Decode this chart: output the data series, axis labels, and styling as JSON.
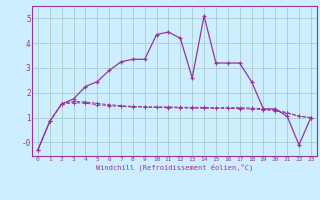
{
  "background_color": "#cceeff",
  "grid_color": "#aacccc",
  "line_color": "#993399",
  "xlabel": "Windchill (Refroidissement éolien,°C)",
  "xlim": [
    -0.5,
    23.5
  ],
  "ylim": [
    -0.55,
    5.5
  ],
  "yticks": [
    0,
    1,
    2,
    3,
    4,
    5
  ],
  "ytick_labels": [
    "-0",
    "1",
    "2",
    "3",
    "4",
    "5"
  ],
  "xticks": [
    0,
    1,
    2,
    3,
    4,
    5,
    6,
    7,
    8,
    9,
    10,
    11,
    12,
    13,
    14,
    15,
    16,
    17,
    18,
    19,
    20,
    21,
    22,
    23
  ],
  "curve1_x": [
    0,
    1,
    2,
    3,
    4,
    5,
    6,
    7,
    8,
    9,
    10,
    11,
    12,
    13,
    14,
    15,
    16,
    17,
    18,
    19,
    20,
    21,
    22,
    23
  ],
  "curve1_y": [
    -0.3,
    0.85,
    1.55,
    1.75,
    2.25,
    2.45,
    2.9,
    3.25,
    3.35,
    3.35,
    4.35,
    4.45,
    4.2,
    2.6,
    5.1,
    3.2,
    3.2,
    3.2,
    2.45,
    1.35,
    1.35,
    1.05,
    -0.1,
    1.0
  ],
  "curve2_x": [
    0,
    1,
    2,
    3,
    4,
    5,
    6,
    7,
    8,
    9,
    10,
    11,
    12,
    13,
    14,
    15,
    16,
    17,
    18,
    19,
    20,
    21,
    22,
    23
  ],
  "curve2_y": [
    -0.3,
    0.85,
    1.55,
    1.6,
    1.58,
    1.52,
    1.48,
    1.45,
    1.43,
    1.42,
    1.41,
    1.4,
    1.39,
    1.38,
    1.38,
    1.37,
    1.37,
    1.36,
    1.35,
    1.32,
    1.28,
    1.18,
    1.05,
    1.0
  ],
  "curve3_x": [
    0,
    1,
    2,
    3,
    4,
    5,
    6,
    7,
    8,
    9,
    10,
    11,
    12,
    13,
    14,
    15,
    16,
    17,
    18,
    19,
    20,
    21,
    22,
    23
  ],
  "curve3_y": [
    -0.3,
    0.85,
    1.55,
    1.65,
    1.63,
    1.57,
    1.52,
    1.48,
    1.45,
    1.44,
    1.43,
    1.43,
    1.42,
    1.41,
    1.41,
    1.4,
    1.4,
    1.4,
    1.38,
    1.36,
    1.3,
    1.2,
    1.06,
    1.0
  ]
}
